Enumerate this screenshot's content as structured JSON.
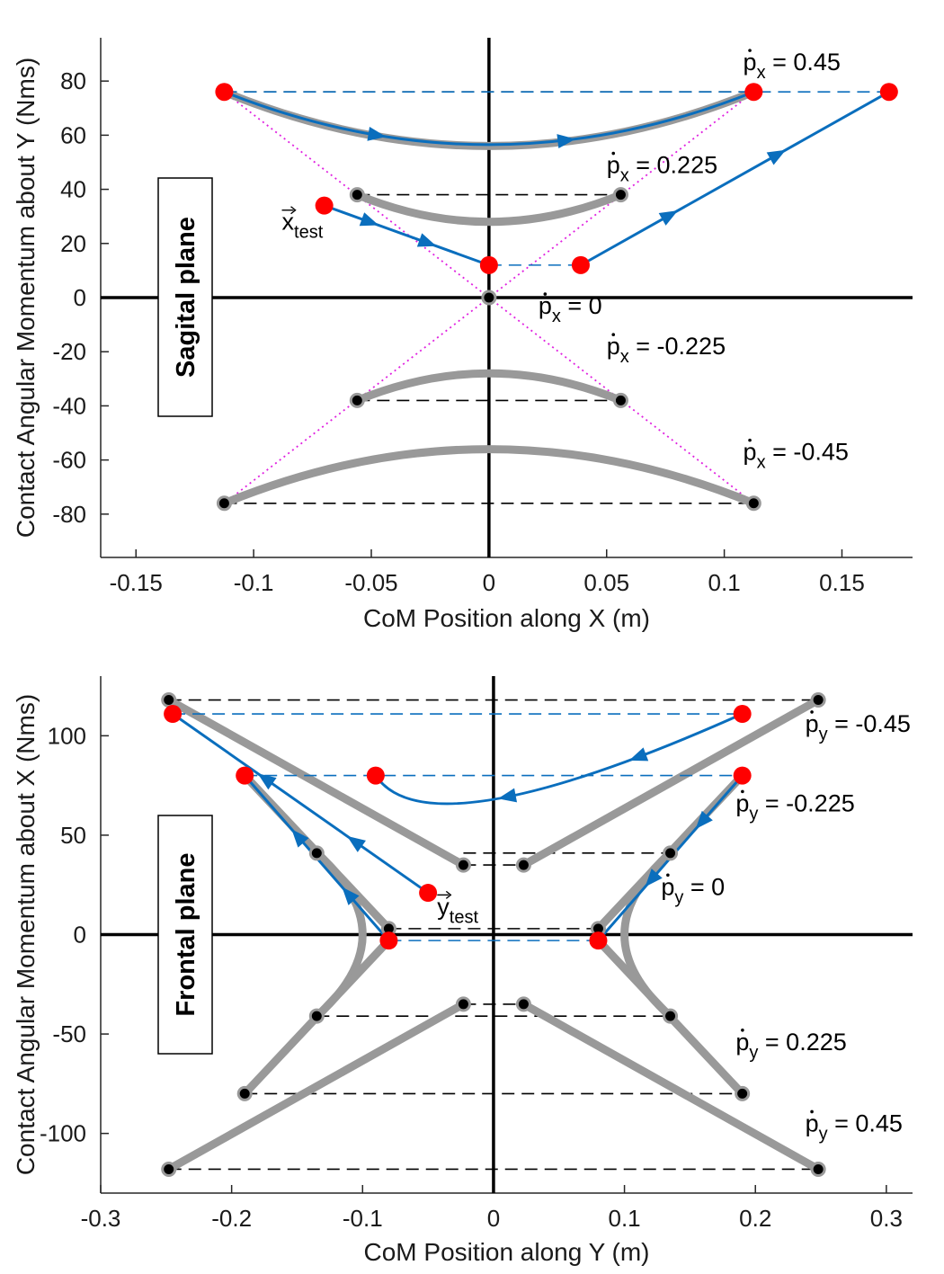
{
  "chart_data": [
    {
      "type": "line",
      "title": "",
      "xlabel": "CoM Position along X (m)",
      "ylabel": "Contact Angular Momentum about Y (Nms)",
      "xlim": [
        -0.165,
        0.18
      ],
      "ylim": [
        -96,
        96
      ],
      "xticks": [
        -0.15,
        -0.1,
        -0.05,
        0,
        0.05,
        0.1,
        0.15
      ],
      "xtick_labels": [
        "-0.15",
        "-0.1",
        "-0.05",
        "0",
        "0.05",
        "0.1",
        "0.15"
      ],
      "yticks": [
        -80,
        -60,
        -40,
        -20,
        0,
        20,
        40,
        60,
        80
      ],
      "ytick_labels": [
        "-80",
        "-60",
        "-40",
        "-20",
        "0",
        "20",
        "40",
        "60",
        "80"
      ],
      "plane_label": "Sagital plane",
      "gray_curves": [
        {
          "name": "pdot_x 0.45",
          "points": [
            [
              -0.1125,
              76
            ],
            [
              0,
              56
            ],
            [
              0.1125,
              76
            ]
          ]
        },
        {
          "name": "pdot_x 0.225",
          "points": [
            [
              -0.056,
              38
            ],
            [
              0,
              28
            ],
            [
              0.056,
              38
            ]
          ]
        },
        {
          "name": "pdot_x 0",
          "points": [
            [
              0,
              0
            ]
          ]
        },
        {
          "name": "pdot_x -0.225",
          "points": [
            [
              -0.056,
              -38
            ],
            [
              0,
              -28
            ],
            [
              0.056,
              -38
            ]
          ]
        },
        {
          "name": "pdot_x -0.45",
          "points": [
            [
              -0.1125,
              -76
            ],
            [
              0,
              -56
            ],
            [
              0.1125,
              -76
            ]
          ]
        }
      ],
      "black_dashed": [
        {
          "x": [
            -0.1125,
            0.1125
          ],
          "y": 76
        },
        {
          "x": [
            -0.056,
            0.056
          ],
          "y": 38
        },
        {
          "x": [
            -0.056,
            0.056
          ],
          "y": -38
        },
        {
          "x": [
            -0.1125,
            0.1125
          ],
          "y": -76
        }
      ],
      "blue_dashed": [
        {
          "x": [
            -0.1125,
            0.17
          ],
          "y": 76
        },
        {
          "x": [
            0,
            0.039
          ],
          "y": 12
        }
      ],
      "magenta_dotted": [
        {
          "from": [
            -0.1125,
            76
          ],
          "to": [
            0.1125,
            -76
          ]
        },
        {
          "from": [
            0.1125,
            76
          ],
          "to": [
            -0.1125,
            -76
          ]
        }
      ],
      "blue_trajectories": [
        {
          "name": "upper arc",
          "points": [
            [
              -0.1125,
              76
            ],
            [
              0,
              56.5
            ],
            [
              0.1125,
              76
            ]
          ]
        },
        {
          "name": "x_test path",
          "points": [
            [
              -0.07,
              34
            ],
            [
              0,
              12
            ]
          ]
        },
        {
          "name": "rising path",
          "points": [
            [
              0.039,
              12
            ],
            [
              0.17,
              76
            ]
          ]
        }
      ],
      "black_points": [
        [
          -0.1125,
          76
        ],
        [
          0.1125,
          76
        ],
        [
          -0.056,
          38
        ],
        [
          0.056,
          38
        ],
        [
          0,
          0
        ],
        [
          -0.056,
          -38
        ],
        [
          0.056,
          -38
        ],
        [
          -0.1125,
          -76
        ],
        [
          0.1125,
          -76
        ]
      ],
      "red_points": [
        [
          -0.1125,
          76
        ],
        [
          0.1125,
          76
        ],
        [
          0.17,
          76
        ],
        [
          -0.07,
          34
        ],
        [
          0,
          12
        ],
        [
          0.039,
          12
        ]
      ],
      "annotations": [
        {
          "base": "p",
          "sub": "x",
          "text": "= 0.45",
          "x": 0.108,
          "y": 84
        },
        {
          "base": "p",
          "sub": "x",
          "text": "= 0.225",
          "x": 0.05,
          "y": 46
        },
        {
          "base": "p",
          "sub": "x",
          "text": "= 0",
          "x": 0.021,
          "y": -6
        },
        {
          "base": "p",
          "sub": "x",
          "text": "= -0.225",
          "x": 0.05,
          "y": -21
        },
        {
          "base": "p",
          "sub": "x",
          "text": "= -0.45",
          "x": 0.108,
          "y": -60
        },
        {
          "base": "x",
          "sub": "test",
          "text": "",
          "x": -0.088,
          "y": 25
        }
      ]
    },
    {
      "type": "line",
      "title": "",
      "xlabel": "CoM Position along Y (m)",
      "ylabel": "Contact Angular Momentum about X (Nms)",
      "xlim": [
        -0.3,
        0.32
      ],
      "ylim": [
        -130,
        130
      ],
      "xticks": [
        -0.3,
        -0.2,
        -0.1,
        0,
        0.1,
        0.2,
        0.3
      ],
      "xtick_labels": [
        "-0.3",
        "-0.2",
        "-0.1",
        "0",
        "0.1",
        "0.2",
        "0.3"
      ],
      "yticks": [
        -100,
        -50,
        0,
        50,
        100
      ],
      "ytick_labels": [
        "-100",
        "-50",
        "0",
        "50",
        "100"
      ],
      "plane_label": "Frontal plane",
      "gray_curves": [
        {
          "name": "pdot_y -0.45 left",
          "points": [
            [
              -0.248,
              118
            ],
            [
              -0.023,
              35
            ]
          ]
        },
        {
          "name": "pdot_y -0.45 right",
          "points": [
            [
              0.248,
              118
            ],
            [
              0.023,
              35
            ]
          ]
        },
        {
          "name": "pdot_y -0.225 left",
          "points": [
            [
              -0.19,
              80
            ],
            [
              -0.08,
              3
            ]
          ]
        },
        {
          "name": "pdot_y -0.225 right",
          "points": [
            [
              0.19,
              80
            ],
            [
              0.08,
              3
            ]
          ]
        },
        {
          "name": "pdot_y 0 left",
          "points": [
            [
              -0.135,
              41
            ],
            [
              -0.1,
              0
            ],
            [
              -0.135,
              -41
            ]
          ]
        },
        {
          "name": "pdot_y 0 right",
          "points": [
            [
              0.135,
              41
            ],
            [
              0.1,
              0
            ],
            [
              0.135,
              -41
            ]
          ]
        },
        {
          "name": "pdot_y 0.225 left",
          "points": [
            [
              -0.19,
              -80
            ],
            [
              -0.08,
              -3
            ]
          ]
        },
        {
          "name": "pdot_y 0.225 right",
          "points": [
            [
              0.19,
              -80
            ],
            [
              0.08,
              -3
            ]
          ]
        },
        {
          "name": "pdot_y 0.45 left",
          "points": [
            [
              -0.248,
              -118
            ],
            [
              -0.023,
              -35
            ]
          ]
        },
        {
          "name": "pdot_y 0.45 right",
          "points": [
            [
              0.248,
              -118
            ],
            [
              0.023,
              -35
            ]
          ]
        }
      ],
      "black_dashed": [
        {
          "x": [
            -0.248,
            0.248
          ],
          "y": 118
        },
        {
          "x": [
            -0.023,
            0.135
          ],
          "y": 41
        },
        {
          "x": [
            -0.023,
            0.023
          ],
          "y": 35
        },
        {
          "x": [
            -0.08,
            0.08
          ],
          "y": 3
        },
        {
          "x": [
            -0.023,
            0.023
          ],
          "y": -35
        },
        {
          "x": [
            -0.135,
            0.135
          ],
          "y": -41
        },
        {
          "x": [
            -0.19,
            0.19
          ],
          "y": -80
        },
        {
          "x": [
            -0.248,
            0.248
          ],
          "y": -118
        }
      ],
      "blue_dashed": [
        {
          "x": [
            -0.245,
            0.19
          ],
          "y": 111
        },
        {
          "x": [
            -0.19,
            0.19
          ],
          "y": 80
        },
        {
          "x": [
            -0.08,
            0.08
          ],
          "y": -3
        }
      ],
      "blue_trajectories": [
        {
          "name": "upper arc",
          "points": [
            [
              0.19,
              111
            ],
            [
              0,
              68
            ],
            [
              -0.09,
              80
            ]
          ]
        },
        {
          "name": "y_test path",
          "points": [
            [
              -0.05,
              21
            ],
            [
              -0.245,
              111
            ]
          ]
        },
        {
          "name": "left inner",
          "points": [
            [
              -0.08,
              -3
            ],
            [
              -0.19,
              80
            ]
          ]
        },
        {
          "name": "right inner",
          "points": [
            [
              0.19,
              80
            ],
            [
              0.08,
              -3
            ]
          ]
        }
      ],
      "black_points": [
        [
          -0.248,
          118
        ],
        [
          0.248,
          118
        ],
        [
          -0.023,
          35
        ],
        [
          0.023,
          35
        ],
        [
          -0.135,
          41
        ],
        [
          0.135,
          41
        ],
        [
          -0.08,
          3
        ],
        [
          0.08,
          3
        ],
        [
          -0.023,
          -35
        ],
        [
          0.023,
          -35
        ],
        [
          -0.135,
          -41
        ],
        [
          0.135,
          -41
        ],
        [
          -0.19,
          -80
        ],
        [
          0.19,
          -80
        ],
        [
          -0.248,
          -118
        ],
        [
          0.248,
          -118
        ]
      ],
      "red_points": [
        [
          -0.245,
          111
        ],
        [
          0.19,
          111
        ],
        [
          -0.19,
          80
        ],
        [
          -0.09,
          80
        ],
        [
          0.19,
          80
        ],
        [
          -0.05,
          21
        ],
        [
          -0.08,
          -3
        ],
        [
          0.08,
          -3
        ]
      ],
      "annotations": [
        {
          "base": "p",
          "sub": "y",
          "text": "= -0.45",
          "x": 0.238,
          "y": 102
        },
        {
          "base": "p",
          "sub": "y",
          "text": "= -0.225",
          "x": 0.185,
          "y": 62
        },
        {
          "base": "p",
          "sub": "y",
          "text": "= 0",
          "x": 0.128,
          "y": 20
        },
        {
          "base": "p",
          "sub": "y",
          "text": "= 0.225",
          "x": 0.185,
          "y": -58
        },
        {
          "base": "p",
          "sub": "y",
          "text": "= 0.45",
          "x": 0.238,
          "y": -99
        },
        {
          "base": "y",
          "sub": "test",
          "text": "",
          "x": -0.043,
          "y": 10
        }
      ]
    }
  ]
}
